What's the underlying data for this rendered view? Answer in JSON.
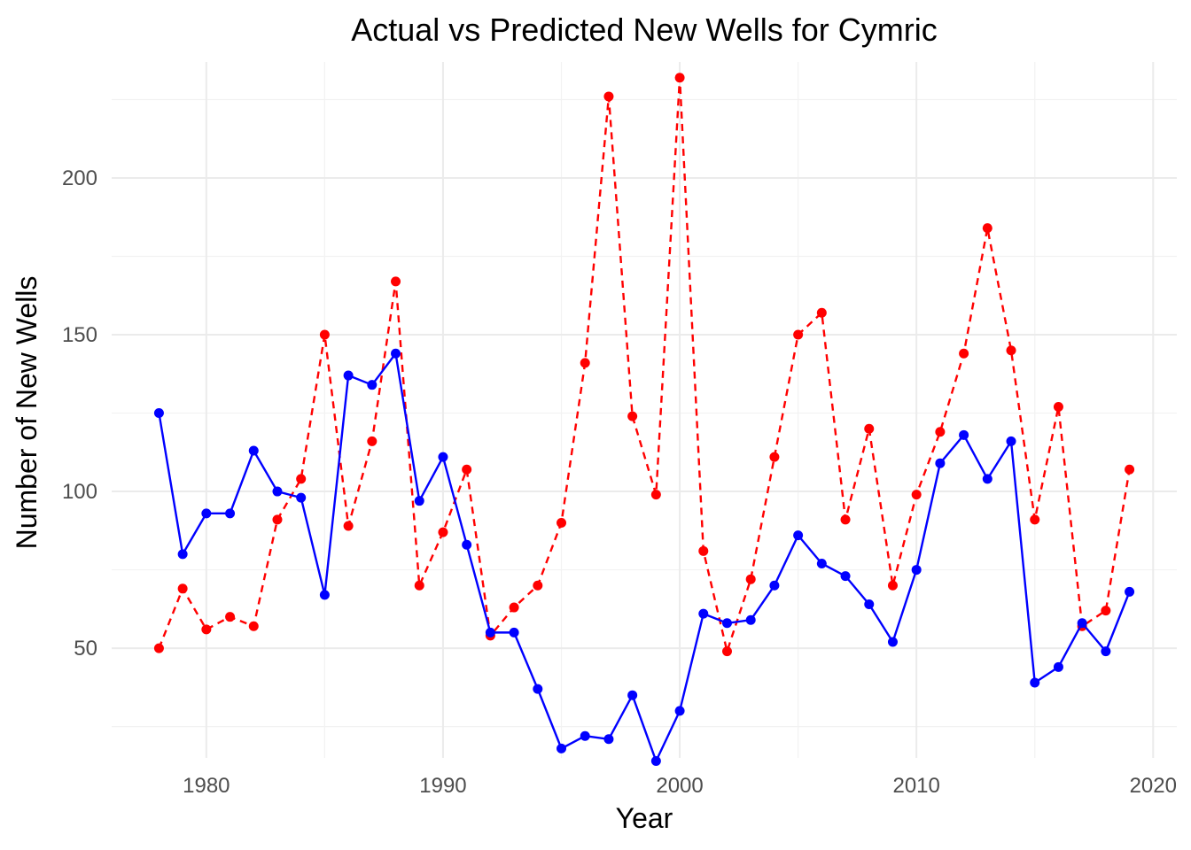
{
  "chart_data": {
    "type": "line",
    "title": "Actual vs Predicted New Wells for Cymric",
    "xlabel": "Year",
    "ylabel": "Number of New Wells",
    "xlim": [
      1976,
      2021
    ],
    "ylim": [
      15,
      237
    ],
    "xticks": [
      1980,
      1990,
      2000,
      2010,
      2020
    ],
    "yticks": [
      50,
      100,
      150,
      200
    ],
    "grid": true,
    "legend": "none",
    "x": [
      1978,
      1979,
      1980,
      1981,
      1982,
      1983,
      1984,
      1985,
      1986,
      1987,
      1988,
      1989,
      1990,
      1991,
      1992,
      1993,
      1994,
      1995,
      1996,
      1997,
      1998,
      1999,
      2000,
      2001,
      2002,
      2003,
      2004,
      2005,
      2006,
      2007,
      2008,
      2009,
      2010,
      2011,
      2012,
      2013,
      2014,
      2015,
      2016,
      2017,
      2018,
      2019
    ],
    "series": [
      {
        "color": "#0000ff",
        "linestyle": "solid",
        "values": [
          125,
          80,
          93,
          93,
          113,
          100,
          98,
          67,
          137,
          134,
          144,
          97,
          111,
          83,
          55,
          55,
          37,
          18,
          22,
          21,
          35,
          14,
          30,
          61,
          58,
          59,
          70,
          86,
          77,
          73,
          64,
          52,
          75,
          109,
          118,
          104,
          116,
          39,
          44,
          58,
          49,
          68
        ]
      },
      {
        "color": "#ff0000",
        "linestyle": "dashed",
        "values": [
          50,
          69,
          56,
          60,
          57,
          91,
          104,
          150,
          89,
          116,
          167,
          70,
          87,
          107,
          54,
          63,
          70,
          90,
          141,
          226,
          124,
          99,
          232,
          81,
          49,
          72,
          111,
          150,
          157,
          91,
          120,
          70,
          99,
          119,
          144,
          184,
          145,
          91,
          127,
          57,
          62,
          107
        ]
      }
    ]
  }
}
